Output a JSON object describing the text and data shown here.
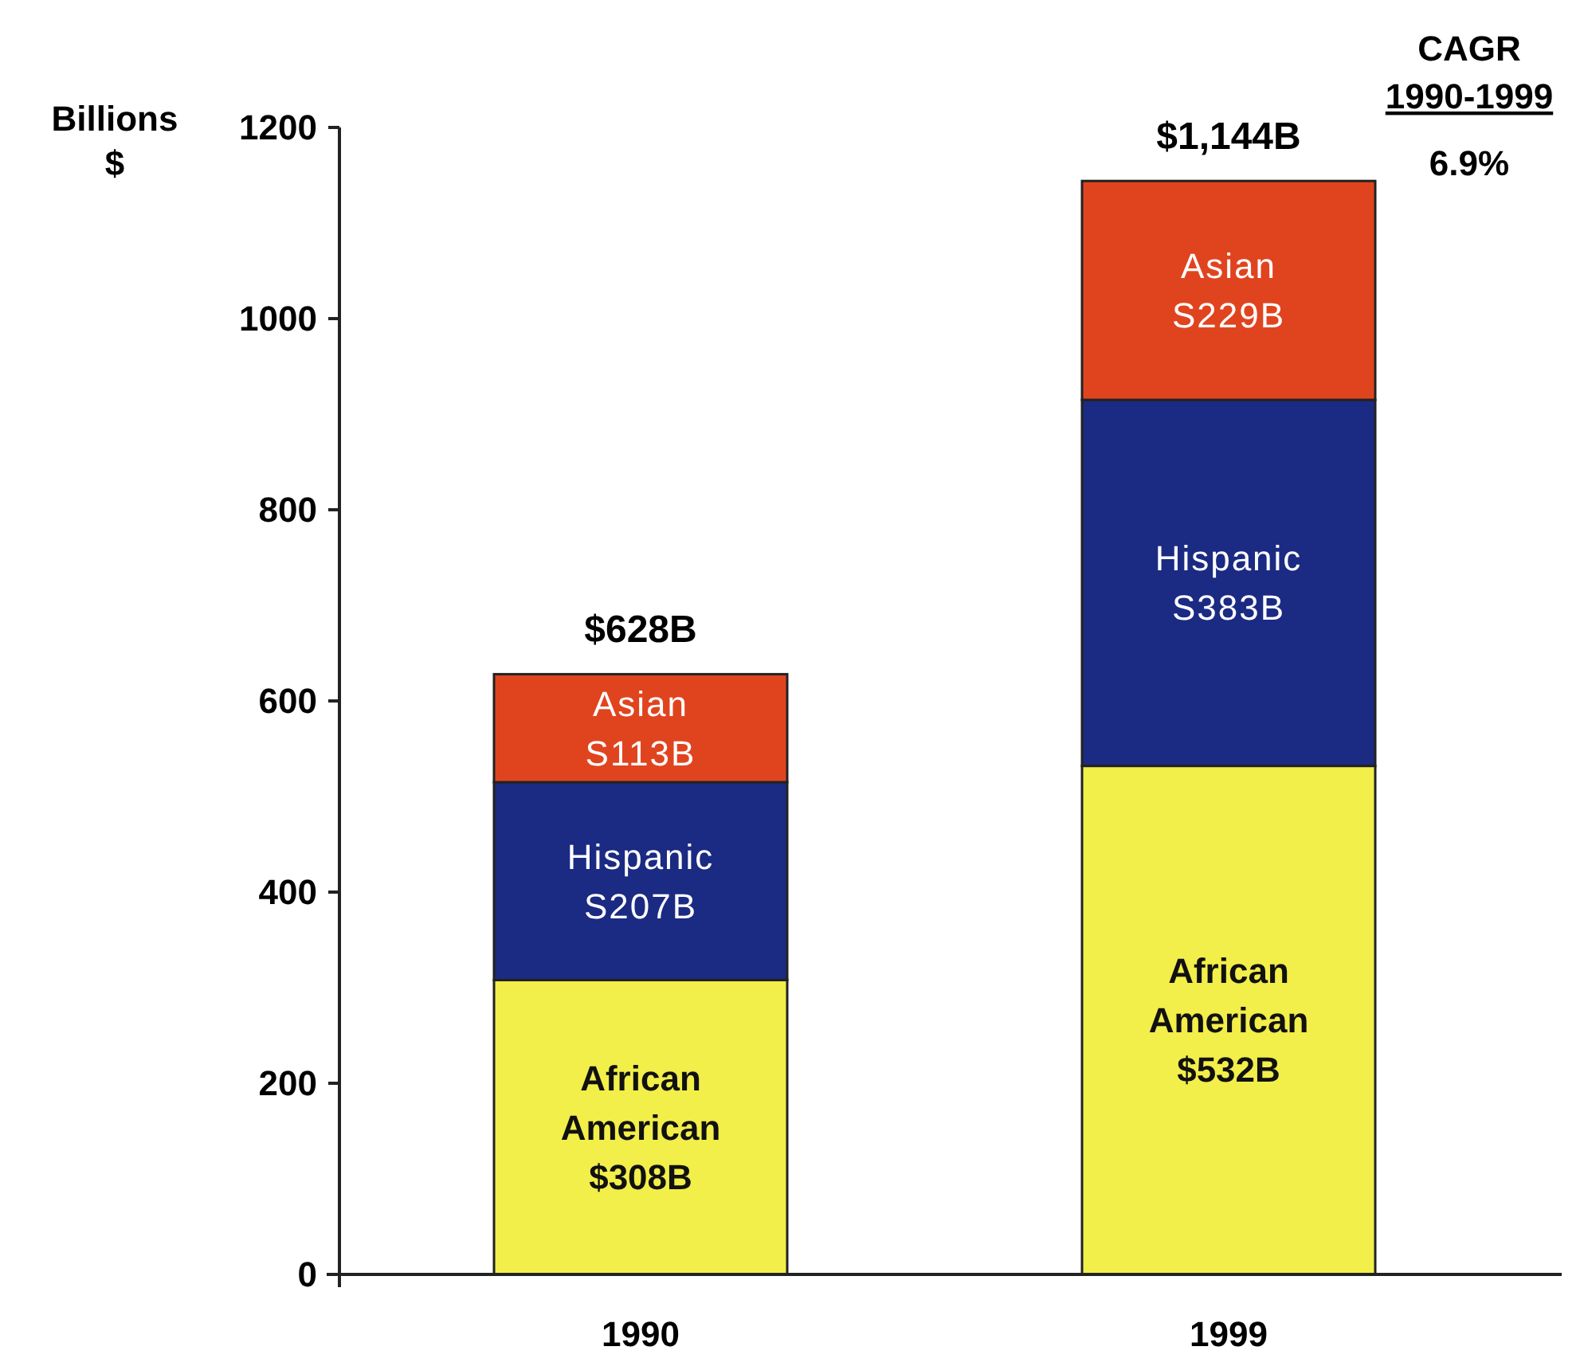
{
  "chart_data": {
    "type": "bar",
    "stacked": true,
    "categories": [
      "1990",
      "1999"
    ],
    "series": [
      {
        "name": "African American",
        "color": "#f2ee4a",
        "values": [
          308,
          532
        ],
        "value_labels": [
          "$308B",
          "$532B"
        ]
      },
      {
        "name": "Hispanic",
        "color": "#1b2a82",
        "values": [
          207,
          383
        ],
        "value_labels": [
          "S207B",
          "S383B"
        ]
      },
      {
        "name": "Asian",
        "color": "#e0441f",
        "values": [
          113,
          229
        ],
        "value_labels": [
          "S113B",
          "S229B"
        ]
      }
    ],
    "totals": [
      "$628B",
      "$1,144B"
    ],
    "ylabel": "Billions $",
    "ylim": [
      0,
      1200
    ],
    "yticks": [
      0,
      200,
      400,
      600,
      800,
      1000,
      1200
    ],
    "annotations": [
      "CAGR",
      "1990-1999",
      "6.9%"
    ],
    "grid": false
  }
}
